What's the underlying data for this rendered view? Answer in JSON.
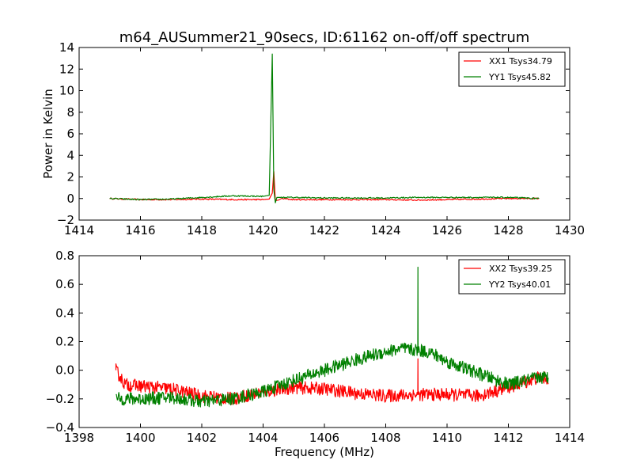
{
  "figure": {
    "title": "m64_AUSummer21_90secs, ID:61162 on-off/off spectrum"
  },
  "chart_data": [
    {
      "type": "line",
      "ylabel": "Power in Kelvin",
      "xlabel": "",
      "xlim": [
        1414,
        1430
      ],
      "ylim": [
        -2,
        14
      ],
      "xticks": [
        "1414",
        "1416",
        "1418",
        "1420",
        "1422",
        "1424",
        "1426",
        "1428",
        "1430"
      ],
      "yticks": [
        "−2",
        "0",
        "2",
        "4",
        "6",
        "8",
        "10",
        "12",
        "14"
      ],
      "grid": false,
      "legend_position": "top-right",
      "series": [
        {
          "name": "XX1 Tsys34.79",
          "color": "#ff0000",
          "x": [
            1415.0,
            1416.0,
            1417.0,
            1418.0,
            1419.0,
            1420.0,
            1420.2,
            1420.3,
            1420.35,
            1420.4,
            1420.5,
            1420.6,
            1421.0,
            1422.0,
            1423.0,
            1424.0,
            1425.0,
            1426.0,
            1427.0,
            1428.0,
            1429.0
          ],
          "y": [
            0.0,
            -0.1,
            -0.1,
            -0.05,
            -0.1,
            -0.1,
            -0.05,
            0.5,
            2.5,
            -0.2,
            -0.15,
            0.0,
            -0.1,
            -0.1,
            -0.1,
            -0.1,
            -0.15,
            -0.1,
            -0.05,
            0.0,
            0.0
          ]
        },
        {
          "name": "YY1 Tsys45.82",
          "color": "#008000",
          "x": [
            1415.0,
            1416.0,
            1417.0,
            1418.0,
            1419.0,
            1420.0,
            1420.2,
            1420.3,
            1420.35,
            1420.4,
            1420.45,
            1420.5,
            1420.6,
            1421.0,
            1422.0,
            1423.0,
            1424.0,
            1425.0,
            1426.0,
            1427.0,
            1428.0,
            1429.0
          ],
          "y": [
            0.0,
            -0.1,
            -0.05,
            0.1,
            0.25,
            0.2,
            0.3,
            13.4,
            0.8,
            -0.4,
            0.1,
            0.1,
            0.1,
            0.1,
            0.05,
            0.05,
            0.05,
            0.1,
            0.1,
            0.1,
            0.1,
            0.0
          ]
        }
      ]
    },
    {
      "type": "line",
      "ylabel": "",
      "xlabel": "Frequency (MHz)",
      "xlim": [
        1398,
        1414
      ],
      "ylim": [
        -0.4,
        0.8
      ],
      "xticks": [
        "1398",
        "1400",
        "1402",
        "1404",
        "1406",
        "1408",
        "1410",
        "1412",
        "1414"
      ],
      "yticks": [
        "−0.4",
        "−0.2",
        "0.0",
        "0.2",
        "0.4",
        "0.6",
        "0.8"
      ],
      "grid": false,
      "legend_position": "top-right",
      "series": [
        {
          "name": "XX2 Tsys39.25",
          "color": "#ff0000",
          "x": [
            1399.2,
            1399.5,
            1400.0,
            1401.0,
            1402.0,
            1403.0,
            1404.0,
            1405.0,
            1406.0,
            1407.0,
            1408.0,
            1409.0,
            1409.05,
            1409.1,
            1410.0,
            1411.0,
            1412.0,
            1413.0,
            1413.3
          ],
          "y": [
            0.0,
            -0.1,
            -0.11,
            -0.13,
            -0.18,
            -0.2,
            -0.15,
            -0.12,
            -0.13,
            -0.16,
            -0.18,
            -0.17,
            0.08,
            -0.17,
            -0.17,
            -0.18,
            -0.12,
            -0.05,
            -0.06
          ],
          "noise": 0.035
        },
        {
          "name": "YY2 Tsys40.01",
          "color": "#008000",
          "x": [
            1399.2,
            1400.0,
            1401.0,
            1402.0,
            1403.0,
            1404.0,
            1405.0,
            1406.0,
            1407.0,
            1408.0,
            1408.5,
            1409.0,
            1409.05,
            1409.1,
            1409.5,
            1410.0,
            1411.0,
            1412.0,
            1413.0,
            1413.3
          ],
          "y": [
            -0.2,
            -0.2,
            -0.19,
            -0.22,
            -0.2,
            -0.15,
            -0.07,
            0.0,
            0.07,
            0.13,
            0.15,
            0.14,
            0.72,
            0.14,
            0.12,
            0.06,
            -0.02,
            -0.1,
            -0.05,
            -0.05
          ],
          "noise": 0.035
        }
      ]
    }
  ]
}
